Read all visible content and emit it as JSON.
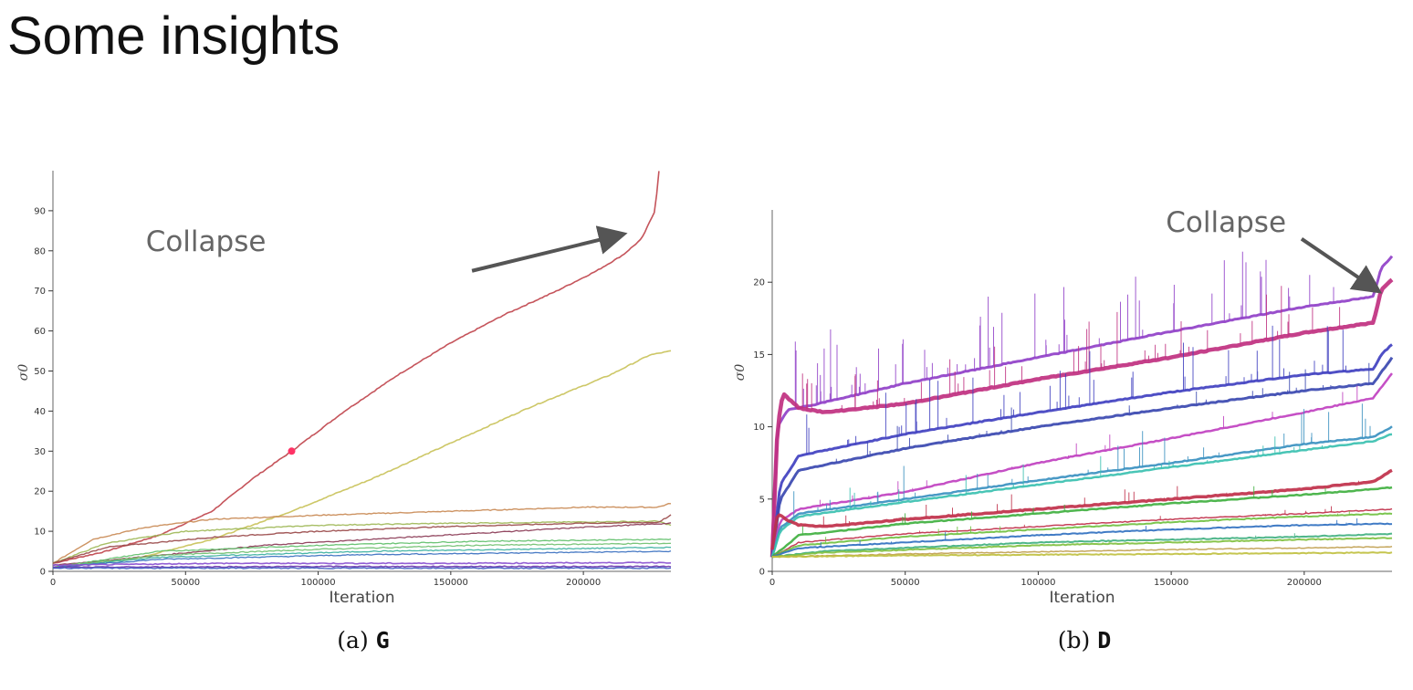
{
  "slide": {
    "title": "Some insights"
  },
  "chart_data": [
    {
      "type": "line",
      "caption_prefix": "(a)",
      "caption_bold": "G",
      "xlabel": "Iteration",
      "ylabel": "σ0",
      "xlim": [
        0,
        233000
      ],
      "ylim": [
        0,
        100
      ],
      "xticks": [
        0,
        50000,
        100000,
        150000,
        200000
      ],
      "yticks": [
        0,
        10,
        20,
        30,
        40,
        50,
        60,
        70,
        80,
        90
      ],
      "grid": false,
      "annotation": {
        "text": "Collapse",
        "text_at": [
          35000,
          80
        ],
        "arrow_from": [
          158000,
          75
        ],
        "arrow_to": [
          214000,
          84
        ]
      },
      "marker": {
        "x": 90000,
        "y": 30,
        "color": "#ff3366"
      },
      "series": [
        {
          "color": "#c0454d",
          "width": 1.6,
          "points": [
            [
              0,
              2
            ],
            [
              20000,
              5
            ],
            [
              40000,
              9
            ],
            [
              60000,
              15
            ],
            [
              75000,
              23
            ],
            [
              90000,
              30
            ],
            [
              110000,
              40
            ],
            [
              130000,
              49
            ],
            [
              150000,
              57
            ],
            [
              170000,
              64
            ],
            [
              190000,
              70
            ],
            [
              205000,
              75
            ],
            [
              215000,
              79
            ],
            [
              222000,
              83
            ],
            [
              227000,
              90
            ],
            [
              228500,
              100
            ]
          ]
        },
        {
          "color": "#c9c25a",
          "width": 1.6,
          "points": [
            [
              0,
              1
            ],
            [
              30000,
              3
            ],
            [
              60000,
              8
            ],
            [
              90000,
              15
            ],
            [
              120000,
              23
            ],
            [
              150000,
              32
            ],
            [
              180000,
              41
            ],
            [
              210000,
              49
            ],
            [
              225000,
              54
            ],
            [
              233000,
              55
            ]
          ]
        },
        {
          "color": "#c98a55",
          "width": 1.4,
          "points": [
            [
              0,
              2
            ],
            [
              15000,
              8
            ],
            [
              35000,
              11
            ],
            [
              60000,
              13
            ],
            [
              100000,
              14
            ],
            [
              150000,
              15
            ],
            [
              200000,
              16
            ],
            [
              228000,
              16
            ],
            [
              233000,
              17
            ]
          ]
        },
        {
          "color": "#a0b858",
          "width": 1.4,
          "points": [
            [
              0,
              2
            ],
            [
              20000,
              7
            ],
            [
              50000,
              10
            ],
            [
              100000,
              11.5
            ],
            [
              150000,
              12
            ],
            [
              228000,
              12.5
            ],
            [
              233000,
              11.5
            ]
          ]
        },
        {
          "color": "#9a4a4a",
          "width": 1.4,
          "points": [
            [
              0,
              2
            ],
            [
              20000,
              6
            ],
            [
              60000,
              8.5
            ],
            [
              100000,
              10
            ],
            [
              150000,
              11.2
            ],
            [
              200000,
              12
            ],
            [
              228000,
              12.2
            ],
            [
              233000,
              14
            ]
          ]
        },
        {
          "color": "#8a3a55",
          "width": 1.3,
          "points": [
            [
              0,
              1.5
            ],
            [
              40000,
              4
            ],
            [
              80000,
              6.5
            ],
            [
              120000,
              8
            ],
            [
              160000,
              9.5
            ],
            [
              200000,
              11
            ],
            [
              233000,
              12
            ]
          ]
        },
        {
          "color": "#5fbf6a",
          "width": 1.3,
          "points": [
            [
              0,
              1
            ],
            [
              40000,
              5
            ],
            [
              100000,
              6.5
            ],
            [
              160000,
              7.5
            ],
            [
              233000,
              8
            ]
          ]
        },
        {
          "color": "#70c070",
          "width": 1.3,
          "points": [
            [
              0,
              1
            ],
            [
              40000,
              4
            ],
            [
              100000,
              5.5
            ],
            [
              160000,
              6.5
            ],
            [
              233000,
              7
            ]
          ]
        },
        {
          "color": "#3ab0a0",
          "width": 1.3,
          "points": [
            [
              0,
              1
            ],
            [
              40000,
              3.5
            ],
            [
              120000,
              5
            ],
            [
              233000,
              6
            ]
          ]
        },
        {
          "color": "#3a70c0",
          "width": 1.3,
          "points": [
            [
              0,
              1
            ],
            [
              40000,
              3
            ],
            [
              120000,
              4.2
            ],
            [
              233000,
              5
            ]
          ]
        },
        {
          "color": "#8a50d0",
          "width": 1.6,
          "points": [
            [
              0,
              1.5
            ],
            [
              60000,
              2
            ],
            [
              150000,
              2
            ],
            [
              233000,
              2.2
            ]
          ]
        },
        {
          "color": "#6a3ab0",
          "width": 1.6,
          "points": [
            [
              0,
              1
            ],
            [
              100000,
              1.2
            ],
            [
              233000,
              1.2
            ]
          ]
        },
        {
          "color": "#4060c0",
          "width": 1.4,
          "points": [
            [
              0,
              0.8
            ],
            [
              233000,
              0.8
            ]
          ]
        }
      ]
    },
    {
      "type": "line",
      "caption_prefix": "(b)",
      "caption_bold": "D",
      "xlabel": "Iteration",
      "ylabel": "σ0",
      "xlim": [
        0,
        233000
      ],
      "ylim": [
        0,
        25
      ],
      "xticks": [
        0,
        50000,
        100000,
        150000,
        200000
      ],
      "yticks": [
        0,
        5,
        10,
        15,
        20
      ],
      "grid": false,
      "annotation": {
        "text": "Collapse",
        "text_at": [
          148000,
          23.5
        ],
        "arrow_from": [
          199000,
          23
        ],
        "arrow_to": [
          227000,
          19.5
        ]
      },
      "series": [
        {
          "color": "#9040c8",
          "width": 3,
          "spikes": 1.6,
          "points": [
            [
              0,
              2
            ],
            [
              2000,
              10
            ],
            [
              6000,
              11.2
            ],
            [
              15000,
              11.5
            ],
            [
              50000,
              13
            ],
            [
              100000,
              14.8
            ],
            [
              150000,
              16.6
            ],
            [
              200000,
              18.3
            ],
            [
              226000,
              19
            ],
            [
              229000,
              21
            ],
            [
              233000,
              21.8
            ]
          ]
        },
        {
          "color": "#c03080",
          "width": 4.5,
          "spikes": 1.2,
          "points": [
            [
              0,
              1
            ],
            [
              2000,
              10
            ],
            [
              4000,
              12.3
            ],
            [
              10000,
              11.3
            ],
            [
              20000,
              11
            ],
            [
              50000,
              11.6
            ],
            [
              100000,
              13.3
            ],
            [
              150000,
              14.8
            ],
            [
              200000,
              16.5
            ],
            [
              226000,
              17.2
            ],
            [
              229000,
              19.5
            ],
            [
              233000,
              20.2
            ]
          ]
        },
        {
          "color": "#4040c0",
          "width": 3,
          "spikes": 1.2,
          "points": [
            [
              0,
              1
            ],
            [
              3000,
              6
            ],
            [
              10000,
              8
            ],
            [
              50000,
              9.5
            ],
            [
              100000,
              11
            ],
            [
              150000,
              12.4
            ],
            [
              200000,
              13.6
            ],
            [
              226000,
              14
            ],
            [
              229000,
              15
            ],
            [
              233000,
              15.7
            ]
          ]
        },
        {
          "color": "#3a48b0",
          "width": 3,
          "spikes": 0.6,
          "points": [
            [
              0,
              1
            ],
            [
              3000,
              5
            ],
            [
              10000,
              7
            ],
            [
              50000,
              8.5
            ],
            [
              100000,
              10
            ],
            [
              150000,
              11.3
            ],
            [
              200000,
              12.5
            ],
            [
              226000,
              13
            ],
            [
              233000,
              14.8
            ]
          ]
        },
        {
          "color": "#c040c0",
          "width": 2.5,
          "spikes": 0.4,
          "points": [
            [
              0,
              1
            ],
            [
              3000,
              3.5
            ],
            [
              10000,
              4.3
            ],
            [
              50000,
              5.5
            ],
            [
              100000,
              7.5
            ],
            [
              150000,
              9.2
            ],
            [
              200000,
              11
            ],
            [
              226000,
              12
            ],
            [
              233000,
              13.7
            ]
          ]
        },
        {
          "color": "#3a90c0",
          "width": 2.5,
          "spikes": 0.8,
          "points": [
            [
              0,
              1
            ],
            [
              3000,
              3
            ],
            [
              10000,
              4
            ],
            [
              50000,
              5
            ],
            [
              100000,
              6.3
            ],
            [
              150000,
              7.5
            ],
            [
              200000,
              8.8
            ],
            [
              226000,
              9.3
            ],
            [
              233000,
              10
            ]
          ]
        },
        {
          "color": "#3ac0b0",
          "width": 2.5,
          "spikes": 0.5,
          "points": [
            [
              0,
              1
            ],
            [
              3000,
              2.8
            ],
            [
              10000,
              3.8
            ],
            [
              50000,
              4.8
            ],
            [
              100000,
              6
            ],
            [
              150000,
              7.2
            ],
            [
              200000,
              8.4
            ],
            [
              226000,
              9
            ],
            [
              233000,
              9.5
            ]
          ]
        },
        {
          "color": "#c0304a",
          "width": 3.5,
          "spikes": 0.4,
          "points": [
            [
              0,
              1.5
            ],
            [
              2000,
              4
            ],
            [
              6000,
              3.5
            ],
            [
              10000,
              3.2
            ],
            [
              20000,
              3.1
            ],
            [
              50000,
              3.6
            ],
            [
              100000,
              4.3
            ],
            [
              150000,
              5
            ],
            [
              200000,
              5.7
            ],
            [
              226000,
              6.2
            ],
            [
              233000,
              7
            ]
          ]
        },
        {
          "color": "#40b040",
          "width": 2.5,
          "spikes": 0.3,
          "points": [
            [
              0,
              1
            ],
            [
              10000,
              2.5
            ],
            [
              50000,
              3.3
            ],
            [
              100000,
              4
            ],
            [
              150000,
              4.7
            ],
            [
              200000,
              5.3
            ],
            [
              233000,
              5.8
            ]
          ]
        },
        {
          "color": "#c0304a",
          "width": 1.5,
          "spikes": 0.2,
          "points": [
            [
              0,
              1
            ],
            [
              10000,
              2
            ],
            [
              50000,
              2.6
            ],
            [
              100000,
              3.1
            ],
            [
              150000,
              3.6
            ],
            [
              200000,
              4
            ],
            [
              233000,
              4.3
            ]
          ]
        },
        {
          "color": "#70c040",
          "width": 2,
          "spikes": 0.2,
          "points": [
            [
              0,
              1
            ],
            [
              10000,
              1.8
            ],
            [
              50000,
              2.4
            ],
            [
              100000,
              2.9
            ],
            [
              150000,
              3.4
            ],
            [
              200000,
              3.8
            ],
            [
              233000,
              4
            ]
          ]
        },
        {
          "color": "#3070c0",
          "width": 2,
          "spikes": 0.2,
          "points": [
            [
              0,
              1
            ],
            [
              10000,
              1.6
            ],
            [
              50000,
              2
            ],
            [
              100000,
              2.5
            ],
            [
              150000,
              2.9
            ],
            [
              200000,
              3.2
            ],
            [
              233000,
              3.3
            ]
          ]
        },
        {
          "color": "#40b080",
          "width": 2,
          "spikes": 0.1,
          "points": [
            [
              0,
              1
            ],
            [
              20000,
              1.4
            ],
            [
              100000,
              2
            ],
            [
              200000,
              2.4
            ],
            [
              233000,
              2.6
            ]
          ]
        },
        {
          "color": "#80c040",
          "width": 2,
          "spikes": 0.1,
          "points": [
            [
              0,
              1
            ],
            [
              20000,
              1.3
            ],
            [
              100000,
              1.8
            ],
            [
              200000,
              2.2
            ],
            [
              233000,
              2.3
            ]
          ]
        },
        {
          "color": "#c0a050",
          "width": 1.5,
          "spikes": 0,
          "points": [
            [
              0,
              1
            ],
            [
              50000,
              1.2
            ],
            [
              150000,
              1.5
            ],
            [
              233000,
              1.7
            ]
          ]
        },
        {
          "color": "#c0c040",
          "width": 2,
          "spikes": 0,
          "points": [
            [
              0,
              1
            ],
            [
              50000,
              1.1
            ],
            [
              150000,
              1.2
            ],
            [
              233000,
              1.3
            ]
          ]
        }
      ]
    }
  ]
}
